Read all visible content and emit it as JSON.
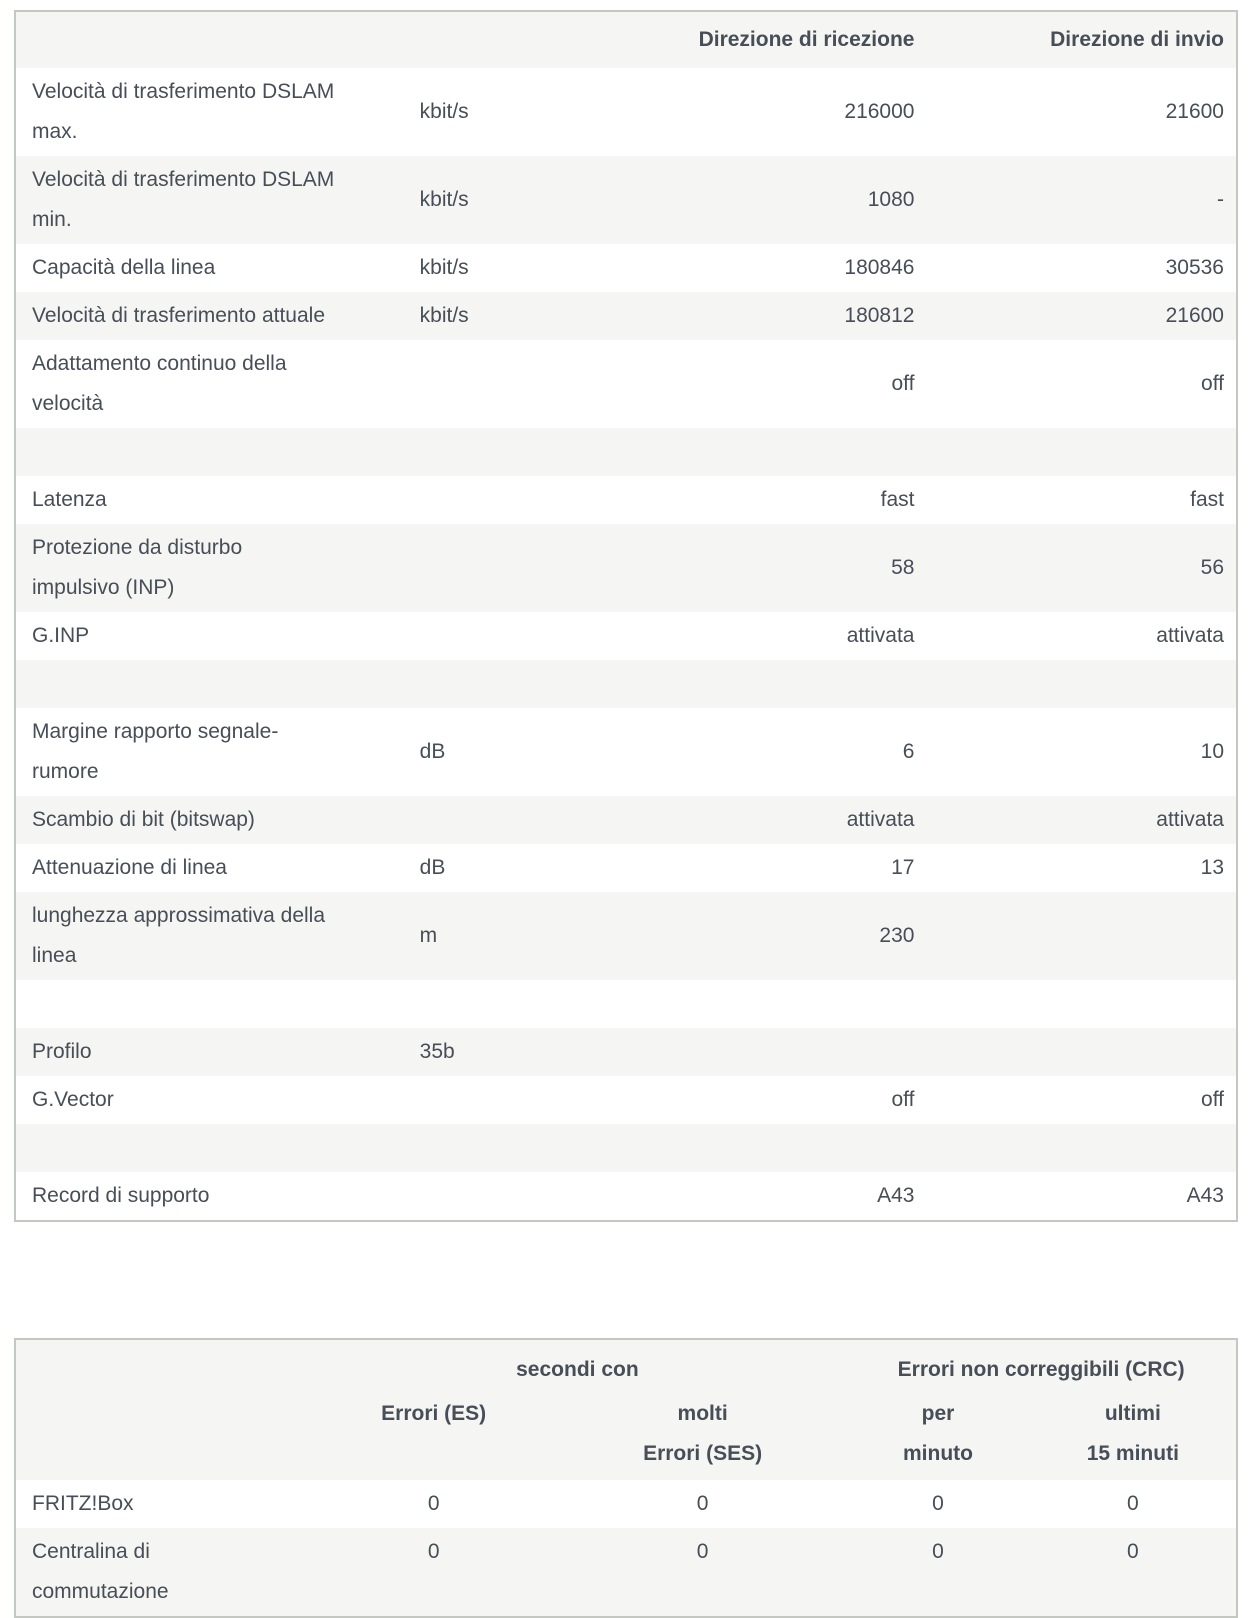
{
  "colors": {
    "text": "#474e57",
    "row_stripe": "#f5f5f3",
    "row_white": "#ffffff",
    "table_border": "#c5c8c0"
  },
  "dsl_table": {
    "header_rx": "Direzione di ricezione",
    "header_tx": "Direzione di invio",
    "rows": [
      {
        "label": "Velocità di trasferimento DSLAM\nmax.",
        "unit": "kbit/s",
        "rx": "216000",
        "tx": "21600"
      },
      {
        "label": "Velocità di trasferimento DSLAM\nmin.",
        "unit": "kbit/s",
        "rx": "1080",
        "tx": "-"
      },
      {
        "label": "Capacità della linea",
        "unit": "kbit/s",
        "rx": "180846",
        "tx": "30536"
      },
      {
        "label": "Velocità di trasferimento attuale",
        "unit": "kbit/s",
        "rx": "180812",
        "tx": "21600"
      },
      {
        "label": "Adattamento continuo della\nvelocità",
        "unit": "",
        "rx": "off",
        "tx": "off"
      },
      {
        "label": "",
        "unit": "",
        "rx": "",
        "tx": ""
      },
      {
        "label": "Latenza",
        "unit": "",
        "rx": "fast",
        "tx": "fast"
      },
      {
        "label": "Protezione da disturbo\nimpulsivo (INP)",
        "unit": "",
        "rx": "58",
        "tx": "56"
      },
      {
        "label": "G.INP",
        "unit": "",
        "rx": "attivata",
        "tx": "attivata"
      },
      {
        "label": "",
        "unit": "",
        "rx": "",
        "tx": ""
      },
      {
        "label": "Margine rapporto segnale-\nrumore",
        "unit": "dB",
        "rx": "6",
        "tx": "10"
      },
      {
        "label": "Scambio di bit (bitswap)",
        "unit": "",
        "rx": "attivata",
        "tx": "attivata"
      },
      {
        "label": "Attenuazione di linea",
        "unit": "dB",
        "rx": "17",
        "tx": "13"
      },
      {
        "label": "lunghezza approssimativa della\nlinea",
        "unit": "m",
        "rx": "230",
        "tx": ""
      },
      {
        "label": "",
        "unit": "",
        "rx": "",
        "tx": ""
      },
      {
        "label": "Profilo",
        "unit": "35b",
        "rx": "",
        "tx": ""
      },
      {
        "label": "G.Vector",
        "unit": "",
        "rx": "off",
        "tx": "off"
      },
      {
        "label": "",
        "unit": "",
        "rx": "",
        "tx": ""
      },
      {
        "label": "Record di supporto",
        "unit": "",
        "rx": "A43",
        "tx": "A43"
      }
    ]
  },
  "error_table": {
    "group_seconds": "secondi con",
    "group_crc": "Errori non correggibili (CRC)",
    "col_headers": [
      "Errori (ES)",
      "molti\nErrori (SES)",
      "per\nminuto",
      "ultimi\n15 minuti"
    ],
    "rows": [
      {
        "label": "FRITZ!Box",
        "values": [
          "0",
          "0",
          "0",
          "0"
        ]
      },
      {
        "label": "Centralina di\ncommutazione",
        "values": [
          "0",
          "0",
          "0",
          "0"
        ]
      }
    ]
  }
}
